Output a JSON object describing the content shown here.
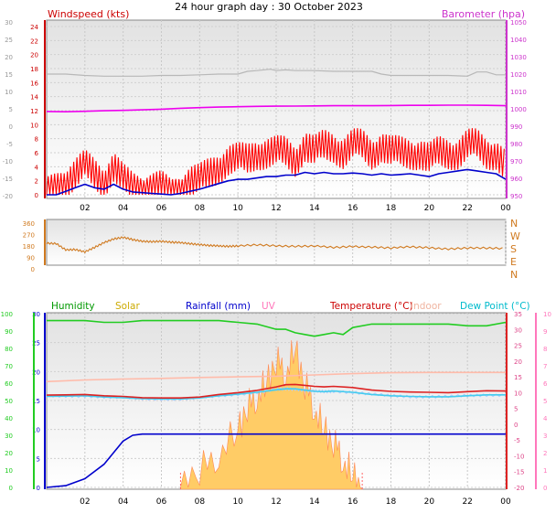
{
  "title": "24 hour graph day : 30 October 2023",
  "colors": {
    "windspeed_label": "#cc0000",
    "gust": "#ff0000",
    "avgwind": "#0000cc",
    "baro": "#ee00ee",
    "baro_axis": "#cc33cc",
    "grey_trace": "#b8b8b8",
    "direction": "#d07a20",
    "humidity": "#22cc22",
    "humidity_label": "#009900",
    "solar": "#ccaa00",
    "solar_fill": "#ffcc66",
    "rainfall": "#0000cc",
    "uv": "#ff77bb",
    "temperature": "#dd2222",
    "temperature_label": "#cc0000",
    "indoor": "#ffbbaa",
    "indoor_label": "#f0b4a0",
    "dewpoint": "#44ccee",
    "dewpoint_label": "#00bbcc",
    "temp_axis": "#dd4488"
  },
  "chart_data": [
    {
      "type": "line",
      "panel": "wind-pressure",
      "x_tick_labels": [
        "02",
        "04",
        "06",
        "08",
        "10",
        "12",
        "14",
        "16",
        "18",
        "20",
        "22",
        "00"
      ],
      "y_left_label": "Windspeed (kts)",
      "y_left_ticks": [
        "24",
        "22",
        "20",
        "18",
        "16",
        "14",
        "12",
        "10",
        "8",
        "6",
        "4",
        "2",
        "0"
      ],
      "y_left_range": [
        0,
        25
      ],
      "y_outer_ticks": [
        "30",
        "25",
        "20",
        "15",
        "10",
        "5",
        "0",
        "-5",
        "-10",
        "-15",
        "-20"
      ],
      "y_right_label": "Barometer (hpa)",
      "y_right_ticks": [
        "1050",
        "1040",
        "1030",
        "1020",
        "1010",
        "1000",
        "990",
        "980",
        "970",
        "960",
        "950"
      ],
      "y_right_range": [
        950,
        1050
      ],
      "series": [
        {
          "key": "grey",
          "x": [
            0,
            1,
            2,
            3,
            4,
            5,
            6,
            7,
            8,
            9,
            10,
            10.5,
            11,
            11.7,
            12,
            12.5,
            13,
            14,
            15,
            16,
            17,
            17.5,
            18,
            19,
            20,
            21,
            22,
            22.5,
            23,
            23.5,
            24
          ],
          "y": [
            15,
            15,
            14.6,
            14.4,
            14.4,
            14.4,
            14.6,
            14.6,
            14.8,
            15.0,
            15.0,
            15.8,
            16.0,
            16.4,
            16.0,
            16.2,
            16.0,
            16.0,
            15.8,
            15.8,
            15.8,
            15.0,
            14.6,
            14.6,
            14.6,
            14.6,
            14.4,
            15.6,
            15.6,
            14.8,
            14.8
          ]
        },
        {
          "key": "baro",
          "x": [
            0,
            1,
            2,
            3,
            4,
            5,
            6,
            7,
            8,
            9,
            10,
            11,
            12,
            13,
            14,
            15,
            16,
            17,
            18,
            19,
            20,
            21,
            22,
            23,
            24
          ],
          "y": [
            998.5,
            998.3,
            998.6,
            998.9,
            999.1,
            999.4,
            999.8,
            1000.3,
            1000.7,
            1001.0,
            1001.2,
            1001.4,
            1001.5,
            1001.6,
            1001.7,
            1001.8,
            1001.8,
            1001.8,
            1001.9,
            1002.0,
            1002.0,
            1002.1,
            1002.1,
            1002.0,
            1001.8
          ]
        },
        {
          "key": "gust",
          "x": [
            0,
            0.5,
            1,
            1.5,
            2,
            2.5,
            3,
            3.5,
            4,
            4.5,
            5,
            5.5,
            6,
            6.5,
            7,
            7.5,
            8,
            8.5,
            9,
            9.5,
            10,
            10.5,
            11,
            11.5,
            12,
            12.5,
            13,
            13.5,
            14,
            14.5,
            15,
            15.5,
            16,
            16.5,
            17,
            17.5,
            18,
            18.5,
            19,
            19.5,
            20,
            20.5,
            21,
            21.5,
            22,
            22.5,
            23,
            23.5,
            24
          ],
          "y": [
            0,
            1,
            2,
            3,
            4,
            3,
            2,
            4,
            2,
            1,
            1,
            1,
            1,
            0,
            1,
            2,
            2,
            3,
            4,
            5,
            5,
            5,
            6,
            6,
            6,
            6,
            5,
            7,
            6,
            7,
            7,
            6,
            7,
            7,
            6,
            7,
            6,
            6,
            6,
            6,
            5,
            6,
            6,
            6,
            7,
            7,
            6,
            6,
            4
          ]
        },
        {
          "key": "avg",
          "x": [
            0,
            0.5,
            1,
            1.5,
            2,
            2.5,
            3,
            3.5,
            4,
            4.5,
            5,
            5.5,
            6,
            6.5,
            7,
            7.5,
            8,
            8.5,
            9,
            9.5,
            10,
            10.5,
            11,
            11.5,
            12,
            12.5,
            13,
            13.5,
            14,
            14.5,
            15,
            15.5,
            16,
            16.5,
            17,
            17.5,
            18,
            18.5,
            19,
            19.5,
            20,
            20.5,
            21,
            21.5,
            22,
            22.5,
            23,
            23.5,
            24
          ],
          "y": [
            0,
            0,
            0.5,
            1,
            1.5,
            1,
            0.8,
            1.5,
            0.8,
            0.4,
            0.3,
            0.2,
            0.1,
            0,
            0.2,
            0.5,
            0.8,
            1.2,
            1.6,
            2,
            2.2,
            2.2,
            2.4,
            2.6,
            2.6,
            2.8,
            2.8,
            3.2,
            3.0,
            3.2,
            3.0,
            3.0,
            3.1,
            3.0,
            2.8,
            3.0,
            2.8,
            2.9,
            3.0,
            2.8,
            2.6,
            3.0,
            3.2,
            3.4,
            3.6,
            3.4,
            3.2,
            3.0,
            2.2
          ]
        }
      ]
    },
    {
      "type": "line",
      "panel": "wind-direction",
      "y_left_ticks": [
        "360",
        "270",
        "180",
        "90",
        "0"
      ],
      "y_range": [
        0,
        360
      ],
      "y_right_ticks": [
        "N",
        "W",
        "S",
        "E",
        "N"
      ],
      "series": [
        {
          "key": "dir",
          "x": [
            0,
            0.5,
            1,
            1.5,
            2,
            2.5,
            3,
            3.5,
            4,
            4.5,
            5,
            5.5,
            6,
            6.5,
            7,
            7.5,
            8,
            8.5,
            9,
            9.5,
            10,
            11,
            12,
            13,
            14,
            15,
            16,
            17,
            18,
            19,
            20,
            21,
            22,
            23,
            24
          ],
          "y": [
            205,
            205,
            160,
            160,
            140,
            175,
            215,
            240,
            250,
            235,
            225,
            220,
            220,
            215,
            215,
            205,
            195,
            190,
            190,
            185,
            185,
            195,
            190,
            185,
            185,
            175,
            185,
            180,
            170,
            180,
            175,
            165,
            170,
            170,
            170
          ]
        }
      ]
    },
    {
      "type": "line",
      "panel": "temperature-humidity",
      "x_tick_labels": [
        "02",
        "04",
        "06",
        "08",
        "10",
        "12",
        "14",
        "16",
        "18",
        "20",
        "22",
        "00"
      ],
      "legend": [
        "Humidity",
        "Solar",
        "Rainfall (mm)",
        "UV",
        "Temperature (°C)",
        "Indoor",
        "Dew Point (°C)"
      ],
      "y_humidity_ticks": [
        "100",
        "90",
        "80",
        "70",
        "60",
        "50",
        "40",
        "30",
        "20",
        "10",
        "0"
      ],
      "y_humidity_range": [
        0,
        100
      ],
      "y_rain_ticks": [
        "30",
        "25",
        "20",
        "15",
        "10",
        "5",
        "0"
      ],
      "y_rain_range": [
        0,
        30
      ],
      "y_temp_ticks": [
        "35",
        "30",
        "25",
        "20",
        "15",
        "10",
        "5",
        "0",
        "-5",
        "-10",
        "-15",
        "-20"
      ],
      "y_temp_range": [
        -20,
        35
      ],
      "y_uv_ticks": [
        "10",
        "9",
        "8",
        "7",
        "6",
        "5",
        "4",
        "3",
        "2",
        "1",
        "0"
      ],
      "y_uv_range": [
        0,
        10
      ],
      "series": [
        {
          "key": "humidity",
          "x": [
            0,
            1,
            2,
            3,
            4,
            5,
            6,
            7,
            8,
            9,
            10,
            11,
            12,
            12.5,
            13,
            13.5,
            14,
            14.5,
            15,
            15.5,
            16,
            17,
            18,
            19,
            20,
            21,
            22,
            23,
            24
          ],
          "y": [
            96,
            96,
            96,
            95,
            95,
            96,
            96,
            96,
            96,
            96,
            95,
            94,
            91,
            91,
            89,
            88,
            87,
            88,
            89,
            88,
            92,
            94,
            94,
            94,
            94,
            94,
            93,
            93,
            95
          ]
        },
        {
          "key": "indoor",
          "x": [
            0,
            2,
            4,
            6,
            8,
            10,
            12,
            14,
            16,
            18,
            20,
            22,
            24
          ],
          "y": [
            13.5,
            14,
            14.3,
            14.5,
            14.8,
            15,
            15.2,
            15.6,
            16.0,
            16.3,
            16.4,
            16.4,
            16.4
          ]
        },
        {
          "key": "temperature",
          "x": [
            0,
            1,
            2,
            3,
            4,
            5,
            6,
            7,
            8,
            9,
            10,
            11,
            12,
            12.5,
            13,
            13.5,
            14,
            14.5,
            15,
            16,
            17,
            18,
            19,
            20,
            21,
            22,
            23,
            24
          ],
          "y": [
            9.2,
            9.3,
            9.4,
            9.0,
            8.8,
            8.4,
            8.3,
            8.3,
            8.6,
            9.4,
            10.0,
            10.7,
            11.8,
            12.5,
            12.6,
            12.3,
            12.0,
            11.8,
            12.0,
            11.6,
            10.8,
            10.4,
            10.2,
            10.1,
            10.0,
            10.3,
            10.6,
            10.5
          ]
        },
        {
          "key": "dewpoint",
          "x": [
            0,
            1,
            2,
            3,
            4,
            5,
            6,
            7,
            8,
            9,
            10,
            11,
            12,
            12.5,
            13,
            13.5,
            14,
            14.5,
            15,
            16,
            17,
            18,
            19,
            20,
            21,
            22,
            23,
            24
          ],
          "y": [
            8.8,
            8.9,
            9.0,
            8.6,
            8.4,
            8.1,
            8.0,
            8.0,
            8.3,
            9.0,
            9.5,
            10.1,
            10.9,
            11.2,
            11.2,
            10.8,
            10.4,
            10.3,
            10.5,
            10.1,
            9.4,
            9.0,
            8.8,
            8.7,
            8.7,
            9.0,
            9.3,
            9.3
          ]
        },
        {
          "key": "rainfall",
          "x": [
            0,
            1,
            2,
            3,
            3.5,
            4,
            4.5,
            5,
            24
          ],
          "y": [
            0,
            0.3,
            1.5,
            4.0,
            6.0,
            8.0,
            9.0,
            9.2,
            9.2
          ]
        },
        {
          "key": "solar",
          "x": [
            7,
            8,
            9,
            10,
            10.5,
            11,
            11.5,
            12,
            12.5,
            13,
            13.5,
            14,
            14.5,
            15,
            15.5,
            16,
            16.5
          ],
          "y": [
            0,
            3,
            6,
            10,
            14,
            16,
            18,
            22,
            20,
            24,
            18,
            14,
            10,
            8,
            5,
            2,
            0
          ]
        }
      ]
    }
  ]
}
